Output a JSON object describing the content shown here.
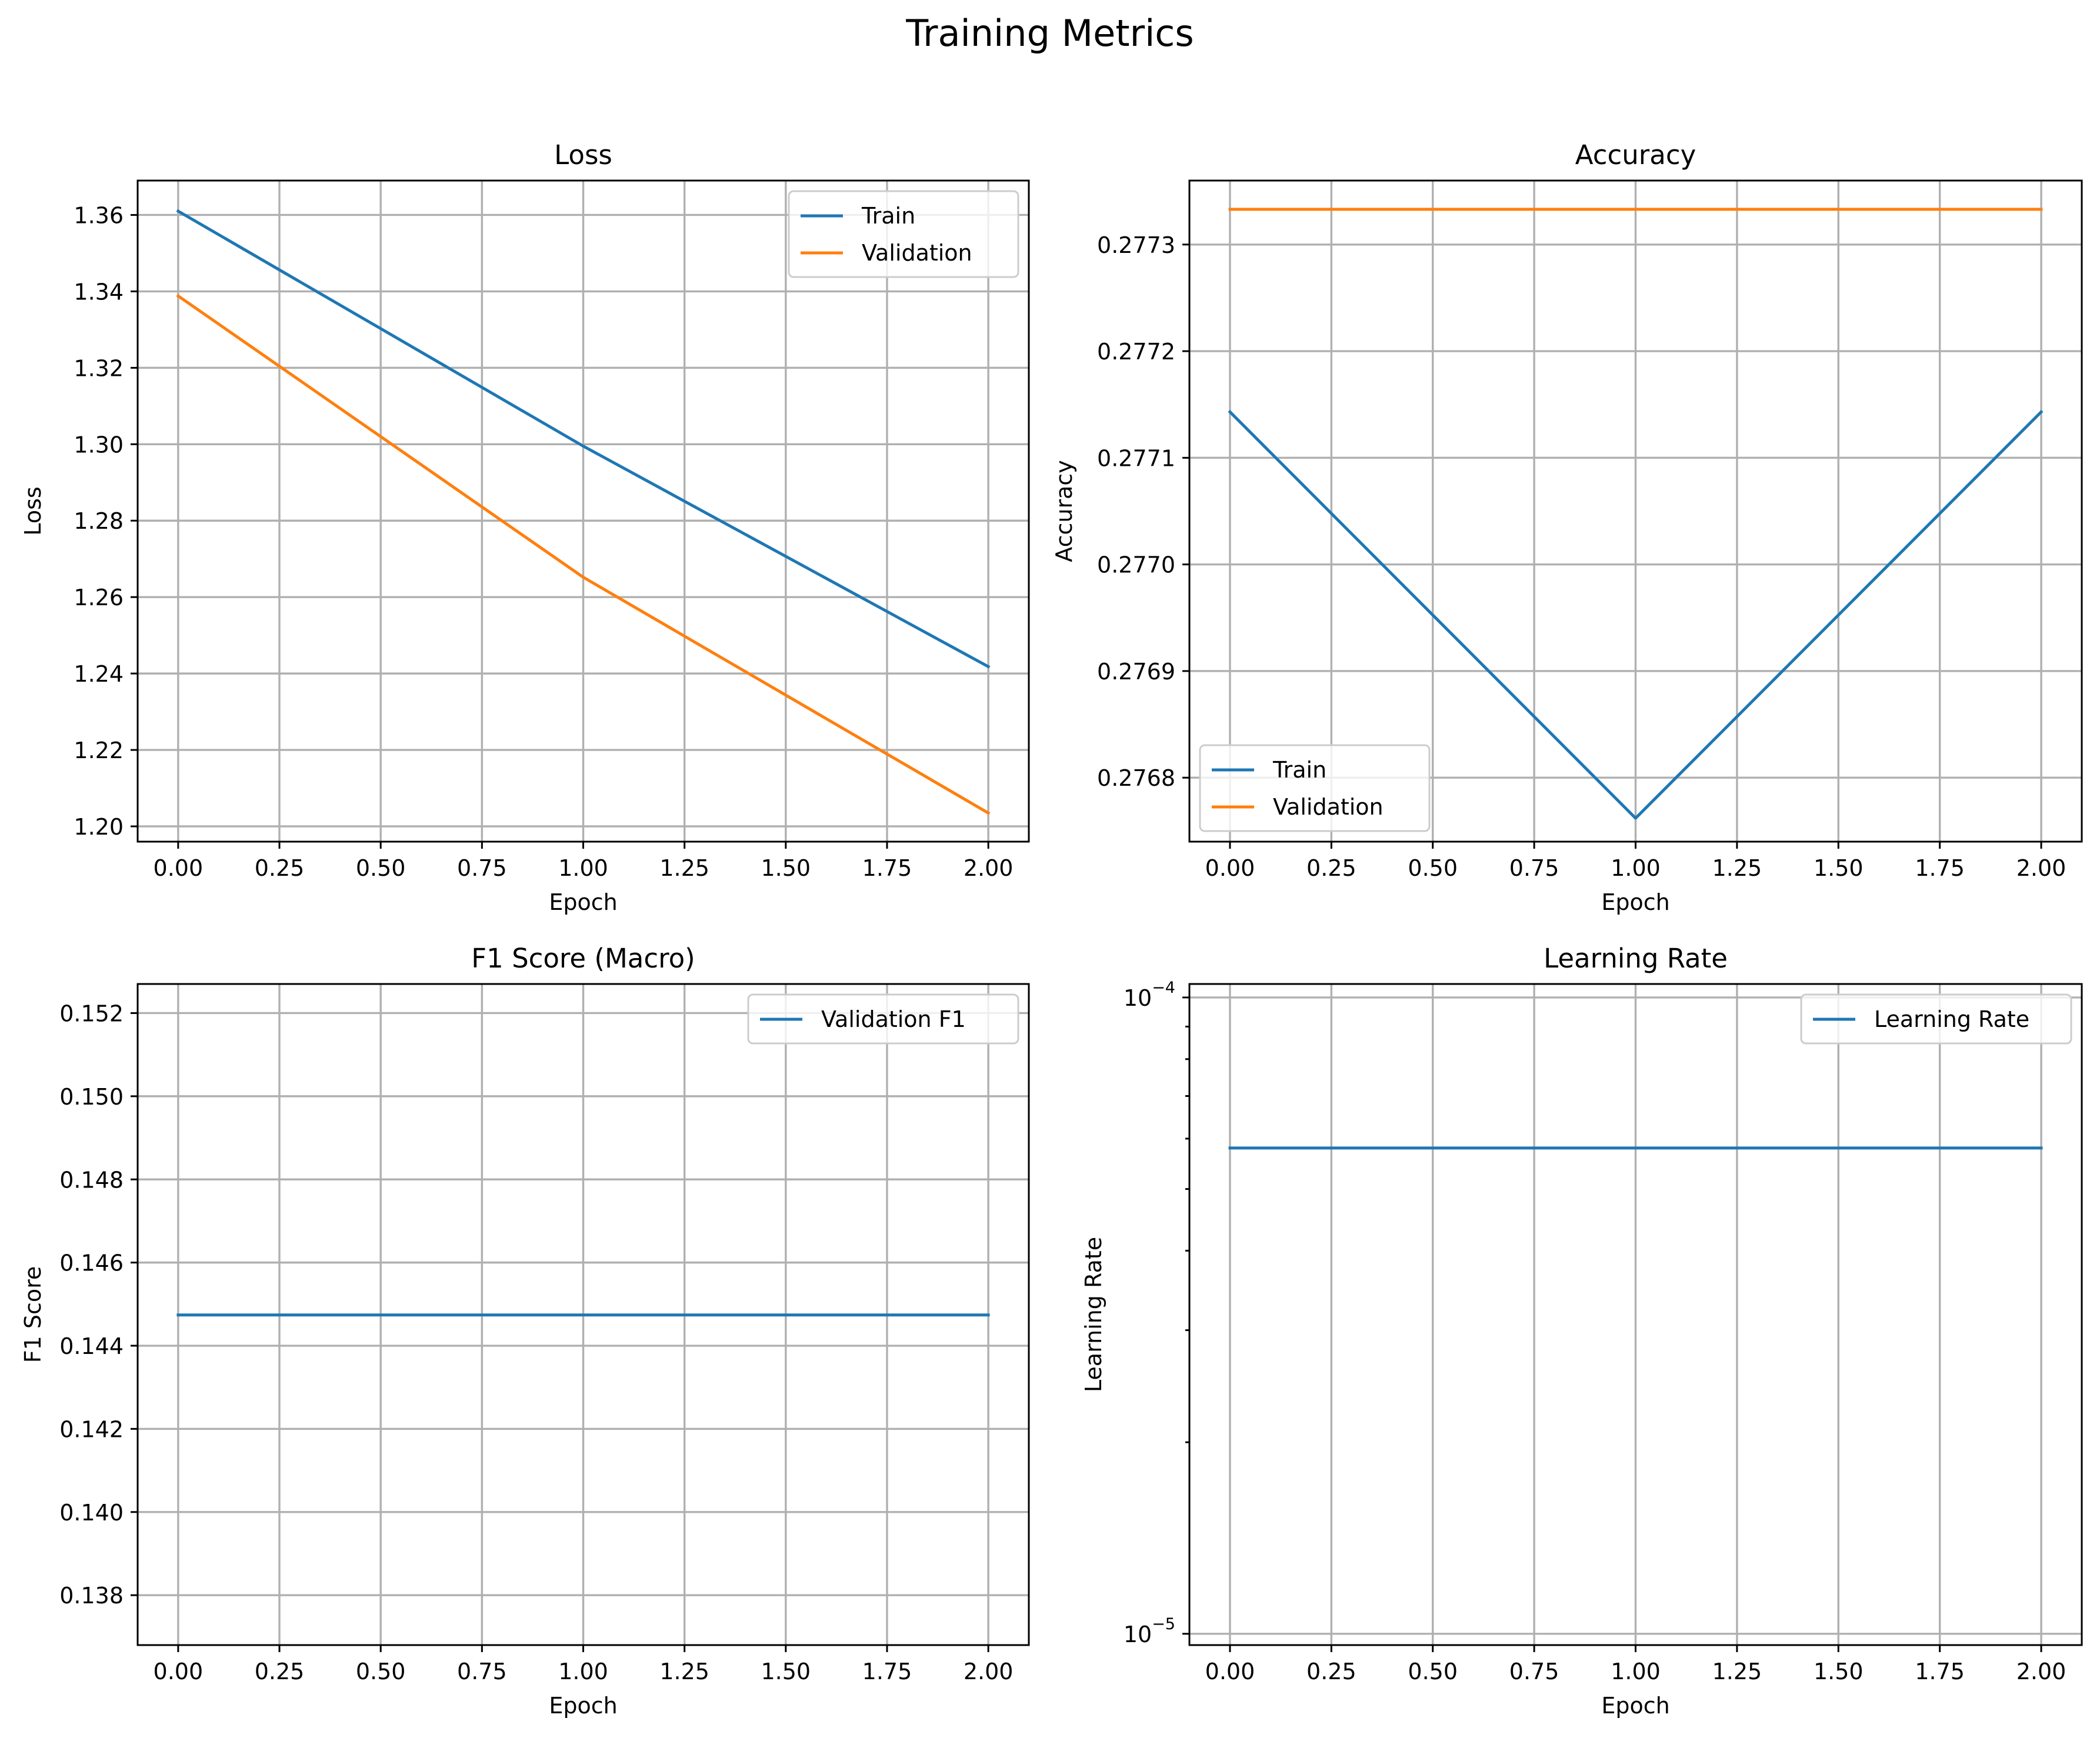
{
  "figure": {
    "title": "Training Metrics"
  },
  "chart_data": [
    {
      "type": "line",
      "title": "Loss",
      "xlabel": "Epoch",
      "ylabel": "Loss",
      "xlim": [
        -0.1,
        2.1
      ],
      "ylim": [
        1.196,
        1.369
      ],
      "xticks": [
        0.0,
        0.25,
        0.5,
        0.75,
        1.0,
        1.25,
        1.5,
        1.75,
        2.0
      ],
      "xtick_labels": [
        "0.00",
        "0.25",
        "0.50",
        "0.75",
        "1.00",
        "1.25",
        "1.50",
        "1.75",
        "2.00"
      ],
      "yticks": [
        1.2,
        1.22,
        1.24,
        1.26,
        1.28,
        1.3,
        1.32,
        1.34,
        1.36
      ],
      "ytick_labels": [
        "1.20",
        "1.22",
        "1.24",
        "1.26",
        "1.28",
        "1.30",
        "1.32",
        "1.34",
        "1.36"
      ],
      "grid": true,
      "legend": "top-right",
      "series": [
        {
          "name": "Train",
          "color": "#1f77b4",
          "x": [
            0,
            1,
            2
          ],
          "values": [
            1.361,
            1.2995,
            1.2418
          ]
        },
        {
          "name": "Validation",
          "color": "#ff7f0e",
          "x": [
            0,
            1,
            2
          ],
          "values": [
            1.3388,
            1.2652,
            1.2035
          ]
        }
      ]
    },
    {
      "type": "line",
      "title": "Accuracy",
      "xlabel": "Epoch",
      "ylabel": "Accuracy",
      "xlim": [
        -0.1,
        2.1
      ],
      "ylim": [
        0.27674,
        0.27736
      ],
      "xticks": [
        0.0,
        0.25,
        0.5,
        0.75,
        1.0,
        1.25,
        1.5,
        1.75,
        2.0
      ],
      "xtick_labels": [
        "0.00",
        "0.25",
        "0.50",
        "0.75",
        "1.00",
        "1.25",
        "1.50",
        "1.75",
        "2.00"
      ],
      "yticks": [
        0.2768,
        0.2769,
        0.277,
        0.2771,
        0.2772,
        0.2773
      ],
      "ytick_labels": [
        "0.2768",
        "0.2769",
        "0.2770",
        "0.2771",
        "0.2772",
        "0.2773"
      ],
      "grid": true,
      "legend": "bottom-left",
      "series": [
        {
          "name": "Train",
          "color": "#1f77b4",
          "x": [
            0,
            1,
            2
          ],
          "values": [
            0.277143,
            0.276762,
            0.277143
          ]
        },
        {
          "name": "Validation",
          "color": "#ff7f0e",
          "x": [
            0,
            1,
            2
          ],
          "values": [
            0.277333,
            0.277333,
            0.277333
          ]
        }
      ]
    },
    {
      "type": "line",
      "title": "F1 Score (Macro)",
      "xlabel": "Epoch",
      "ylabel": "F1 Score",
      "xlim": [
        -0.1,
        2.1
      ],
      "ylim": [
        0.1368,
        0.1527
      ],
      "xticks": [
        0.0,
        0.25,
        0.5,
        0.75,
        1.0,
        1.25,
        1.5,
        1.75,
        2.0
      ],
      "xtick_labels": [
        "0.00",
        "0.25",
        "0.50",
        "0.75",
        "1.00",
        "1.25",
        "1.50",
        "1.75",
        "2.00"
      ],
      "yticks": [
        0.138,
        0.14,
        0.142,
        0.144,
        0.146,
        0.148,
        0.15,
        0.152
      ],
      "ytick_labels": [
        "0.138",
        "0.140",
        "0.142",
        "0.144",
        "0.146",
        "0.148",
        "0.150",
        "0.152"
      ],
      "grid": true,
      "legend": "top-right",
      "series": [
        {
          "name": "Validation F1",
          "color": "#1f77b4",
          "x": [
            0,
            1,
            2
          ],
          "values": [
            0.14474,
            0.14474,
            0.14474
          ]
        }
      ]
    },
    {
      "type": "line",
      "title": "Learning Rate",
      "xlabel": "Epoch",
      "ylabel": "Learning Rate",
      "yscale": "log",
      "xlim": [
        -0.1,
        2.1
      ],
      "ylim": [
        9.6e-06,
        0.000105
      ],
      "xticks": [
        0.0,
        0.25,
        0.5,
        0.75,
        1.0,
        1.25,
        1.5,
        1.75,
        2.0
      ],
      "xtick_labels": [
        "0.00",
        "0.25",
        "0.50",
        "0.75",
        "1.00",
        "1.25",
        "1.50",
        "1.75",
        "2.00"
      ],
      "yticks": [
        1e-05,
        0.0001
      ],
      "ytick_labels": [
        {
          "base": "10",
          "exp": "−5"
        },
        {
          "base": "10",
          "exp": "−4"
        }
      ],
      "grid": true,
      "legend": "top-right",
      "series": [
        {
          "name": "Learning Rate",
          "color": "#1f77b4",
          "x": [
            0,
            1,
            2
          ],
          "values": [
            5.8e-05,
            5.8e-05,
            5.8e-05
          ]
        }
      ]
    }
  ]
}
